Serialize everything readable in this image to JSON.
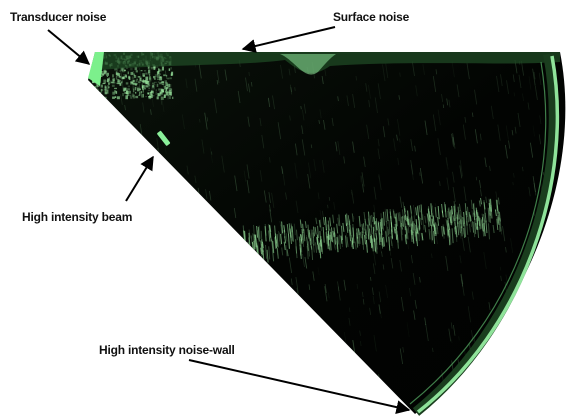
{
  "annotations": {
    "transducer_noise": "Transducer noise",
    "surface_noise": "Surface noise",
    "high_intensity_beam": "High intensity beam",
    "noise_wall": "High intensity noise-wall"
  },
  "colors": {
    "sonar_background": "#030503",
    "echo_green": "#9be8a0",
    "bright_green": "#7cf08c",
    "arrow": "#000000"
  }
}
